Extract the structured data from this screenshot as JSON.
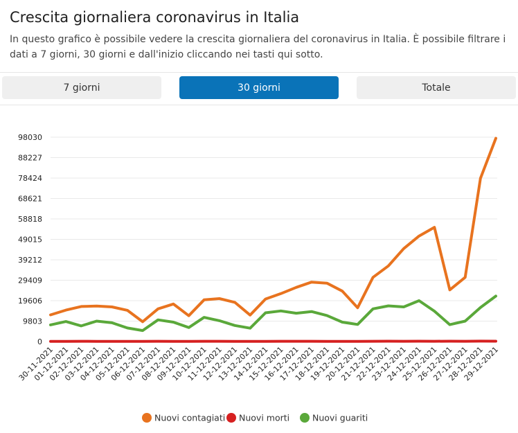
{
  "header": {
    "title": "Crescita giornaliera coronavirus in Italia",
    "subtitle": "In questo grafico è possibile vedere la crescita giornaliera del coronavirus in Italia. È possibile filtrare i dati a 7 giorni, 30 giorni e dall'inizio cliccando nei tasti qui sotto."
  },
  "tabs": [
    {
      "label": "7 giorni",
      "active": false
    },
    {
      "label": "30 giorni",
      "active": true
    },
    {
      "label": "Totale",
      "active": false
    }
  ],
  "chart_data": {
    "type": "line",
    "x": [
      "30-11-2021",
      "01-12-2021",
      "02-12-2021",
      "03-12-2021",
      "04-12-2021",
      "05-12-2021",
      "06-12-2021",
      "07-12-2021",
      "08-12-2021",
      "09-12-2021",
      "10-12-2021",
      "11-12-2021",
      "12-12-2021",
      "13-12-2021",
      "14-12-2021",
      "15-12-2021",
      "16-12-2021",
      "17-12-2021",
      "18-12-2021",
      "19-12-2021",
      "20-12-2021",
      "21-12-2021",
      "22-12-2021",
      "23-12-2021",
      "24-12-2021",
      "25-12-2021",
      "26-12-2021",
      "27-12-2021",
      "28-12-2021",
      "29-12-2021"
    ],
    "yticks": [
      0,
      9803,
      19606,
      29409,
      39212,
      49015,
      58818,
      68621,
      78424,
      88227,
      98030
    ],
    "ylim": [
      0,
      98030
    ],
    "grid": true,
    "legend_position": "bottom",
    "series": [
      {
        "name": "Nuovi contagiati",
        "color": "#e8731f",
        "values": [
          12800,
          15100,
          16800,
          17000,
          16600,
          15000,
          9500,
          15700,
          18000,
          12400,
          20000,
          20600,
          18800,
          12700,
          20400,
          23000,
          26000,
          28500,
          28000,
          24200,
          16200,
          30800,
          36300,
          44600,
          50600,
          54800,
          24800,
          30800,
          78300,
          97500
        ]
      },
      {
        "name": "Nuovi morti",
        "color": "#d62020",
        "values": [
          97,
          68,
          120,
          100,
          80,
          70,
          64,
          120,
          100,
          71,
          120,
          130,
          97,
          90,
          110,
          123,
          120,
          140,
          110,
          97,
          90,
          120,
          170,
          140,
          160,
          142,
          150,
          140,
          200,
          150
        ]
      },
      {
        "name": "Nuovi guariti",
        "color": "#5aa83a",
        "values": [
          8000,
          9600,
          7500,
          9800,
          9000,
          6500,
          5300,
          10400,
          9300,
          6700,
          11600,
          10000,
          7700,
          6400,
          13800,
          14700,
          13600,
          14400,
          12500,
          9300,
          8200,
          15700,
          17100,
          16600,
          19600,
          14600,
          8100,
          9800,
          16300,
          21800
        ]
      }
    ]
  }
}
